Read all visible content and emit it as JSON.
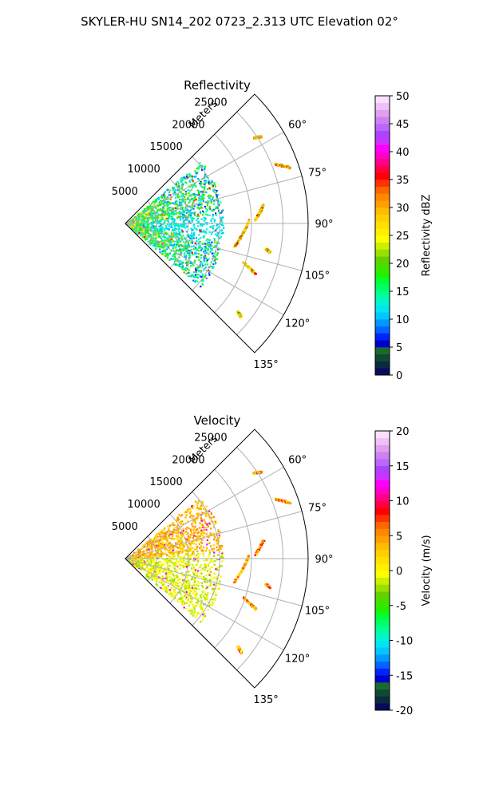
{
  "title": "SKYLER-HU  SN14_202  0723_2.313 UTC Elevation 02°",
  "chart_data": [
    {
      "type": "polar-sector",
      "title": "Reflectivity",
      "radial_label": "Meters",
      "r_ticks": [
        "5000",
        "10000",
        "15000",
        "20000",
        "25000"
      ],
      "r_range": [
        0,
        29000
      ],
      "theta_range_deg": [
        45,
        135
      ],
      "theta_ticks": [
        "60°",
        "75°",
        "90°",
        "105°",
        "120°",
        "135°"
      ],
      "grid": true,
      "colorbar": {
        "label": "Reflectivity dBZ",
        "range": [
          0,
          50
        ],
        "ticks": [
          "0",
          "5",
          "10",
          "15",
          "20",
          "25",
          "30",
          "35",
          "40",
          "45",
          "50"
        ],
        "colors": [
          "#0a0a5a",
          "#0a2a40",
          "#0d4a30",
          "#1a6a30",
          "#0000cc",
          "#0022ff",
          "#0066ff",
          "#0099ff",
          "#00c8ff",
          "#00e5f0",
          "#00f5c8",
          "#00ff9a",
          "#00ff66",
          "#00ff33",
          "#22f000",
          "#44e000",
          "#66d000",
          "#99e000",
          "#c8f000",
          "#ffff00",
          "#fff000",
          "#ffe000",
          "#ffd000",
          "#ffbb00",
          "#ffa000",
          "#ff8800",
          "#ff6600",
          "#ff3300",
          "#ff0000",
          "#ff0044",
          "#ff0088",
          "#ff00cc",
          "#ff00ff",
          "#cc33ff",
          "#aa44ff",
          "#bb66ff",
          "#d080f0",
          "#e0a0f0",
          "#f0c0f8",
          "#f8e0fc"
        ]
      }
    },
    {
      "type": "polar-sector",
      "title": "Velocity",
      "radial_label": "Meters",
      "r_ticks": [
        "5000",
        "10000",
        "15000",
        "20000",
        "25000"
      ],
      "r_range": [
        0,
        29000
      ],
      "theta_range_deg": [
        45,
        135
      ],
      "theta_ticks": [
        "60°",
        "75°",
        "90°",
        "105°",
        "120°",
        "135°"
      ],
      "grid": true,
      "colorbar": {
        "label": "Velocity (m/s)",
        "range": [
          -20,
          20
        ],
        "ticks": [
          "-20",
          "-15",
          "-10",
          "-5",
          "0",
          "5",
          "10",
          "15",
          "20"
        ],
        "colors": [
          "#0a0a5a",
          "#0a2a40",
          "#0d4a30",
          "#1a6a30",
          "#0000cc",
          "#0022ff",
          "#0066ff",
          "#0099ff",
          "#00c8ff",
          "#00e5f0",
          "#00f5c8",
          "#00ff9a",
          "#00ff66",
          "#00ff33",
          "#22f000",
          "#44e000",
          "#66d000",
          "#99e000",
          "#c8f000",
          "#ffff00",
          "#fff000",
          "#ffe000",
          "#ffd000",
          "#ffbb00",
          "#ffa000",
          "#ff8800",
          "#ff6600",
          "#ff3300",
          "#ff0000",
          "#ff0044",
          "#ff0088",
          "#ff00cc",
          "#ff00ff",
          "#cc33ff",
          "#aa44ff",
          "#bb66ff",
          "#d080f0",
          "#e0a0f0",
          "#f0c0f8",
          "#f8e0fc"
        ]
      }
    }
  ]
}
